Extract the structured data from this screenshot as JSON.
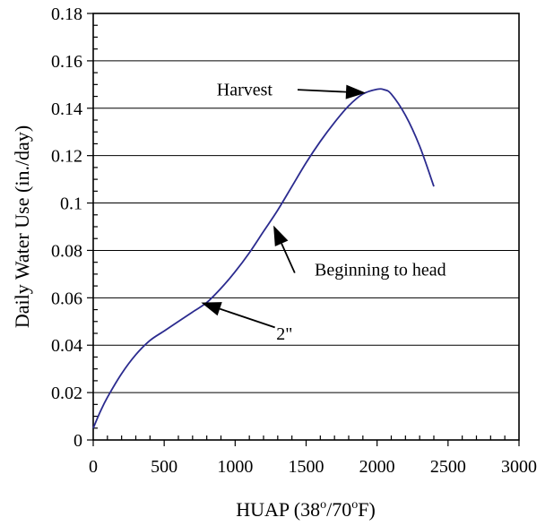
{
  "chart_data": {
    "type": "line",
    "xlabel": "HUAP (38",
    "xlabel_sup1": "o",
    "xlabel_mid": "/70",
    "xlabel_sup2": "o",
    "xlabel_end": "F)",
    "ylabel": "Daily Water Use (in./day)",
    "xlim": [
      0,
      3000
    ],
    "ylim": [
      0,
      0.18
    ],
    "x_ticks": [
      0,
      500,
      1000,
      1500,
      2000,
      2500,
      3000
    ],
    "x_tick_labels": [
      "0",
      "500",
      "1000",
      "1500",
      "2000",
      "2500",
      "3000"
    ],
    "y_ticks": [
      0,
      0.02,
      0.04,
      0.06,
      0.08,
      0.1,
      0.12,
      0.14,
      0.16,
      0.18
    ],
    "y_tick_labels": [
      "0",
      "0.02",
      "0.04",
      "0.06",
      "0.08",
      "0.1",
      "0.12",
      "0.14",
      "0.16",
      "0.18"
    ],
    "grid": "horizontal",
    "series": [
      {
        "color": "#2b2b8f",
        "x": [
          0,
          50,
          100,
          200,
          300,
          400,
          500,
          600,
          700,
          800,
          900,
          1000,
          1100,
          1200,
          1300,
          1400,
          1500,
          1600,
          1700,
          1800,
          1900,
          2000,
          2050,
          2100,
          2200,
          2300,
          2400
        ],
        "y": [
          0.005,
          0.012,
          0.018,
          0.028,
          0.036,
          0.042,
          0.046,
          0.05,
          0.054,
          0.058,
          0.064,
          0.071,
          0.079,
          0.088,
          0.097,
          0.107,
          0.117,
          0.126,
          0.134,
          0.141,
          0.146,
          0.148,
          0.1478,
          0.146,
          0.137,
          0.124,
          0.107
        ]
      }
    ],
    "annotations": [
      {
        "text": "Harvest",
        "text_x": 870,
        "text_y": 0.148,
        "anchor": "start",
        "arrow_from": [
          1440,
          0.1478
        ],
        "arrow_to": [
          1920,
          0.1465
        ]
      },
      {
        "text": "Beginning to head",
        "text_x": 1560,
        "text_y": 0.072,
        "anchor": "start",
        "arrow_from": [
          1420,
          0.0705
        ],
        "arrow_to": [
          1270,
          0.0905
        ]
      },
      {
        "text": "2\"",
        "text_x": 1290,
        "text_y": 0.045,
        "anchor": "start",
        "arrow_from": [
          1280,
          0.0475
        ],
        "arrow_to": [
          760,
          0.058
        ]
      }
    ]
  }
}
